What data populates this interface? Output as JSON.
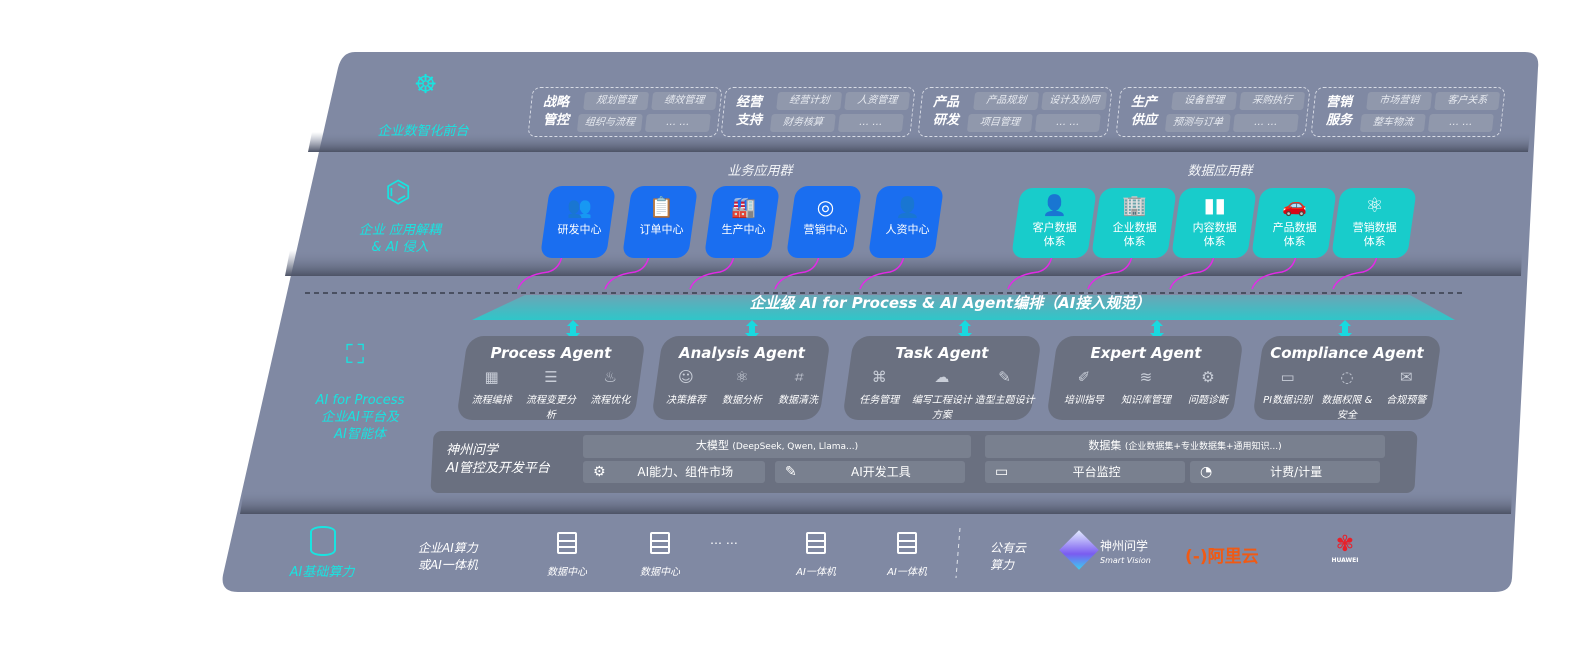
{
  "colors": {
    "slab": "#8089a3",
    "card_blue": "#1a6ef0",
    "card_teal": "#18cccb",
    "accent_cyan": "#19e3e0",
    "arrow_magenta": "#e22be6",
    "agent_card": "#6a7080"
  },
  "layer_front": {
    "label": "企业数智化前台",
    "icon": "brain-icon",
    "groups": [
      {
        "title": "战略\n管控",
        "items": [
          "规划管理",
          "绩效管理",
          "组织与流程",
          "… …"
        ]
      },
      {
        "title": "经营\n支持",
        "items": [
          "经营计划",
          "人资管理",
          "财务核算",
          "… …"
        ]
      },
      {
        "title": "产品\n研发",
        "items": [
          "产品规划",
          "设计及协同",
          "项目管理",
          "… …"
        ]
      },
      {
        "title": "生产\n供应",
        "items": [
          "设备管理",
          "采购执行",
          "预测与订单",
          "… …"
        ]
      },
      {
        "title": "营销\n服务",
        "items": [
          "市场营销",
          "客户关系",
          "整车物流",
          "… …"
        ]
      }
    ]
  },
  "layer_apps": {
    "label_line1": "企业 应用解耦",
    "label_line2": "& AI 侵入",
    "icon": "molecule-icon",
    "business_title": "业务应用群",
    "business": [
      {
        "label": "研发中心",
        "icon": "team-icon"
      },
      {
        "label": "订单中心",
        "icon": "clipboard-icon"
      },
      {
        "label": "生产中心",
        "icon": "factory-icon"
      },
      {
        "label": "营销中心",
        "icon": "target-icon"
      },
      {
        "label": "人资中心",
        "icon": "people-icon"
      }
    ],
    "data_title": "数据应用群",
    "data": [
      {
        "l1": "客户数据",
        "l2": "体系",
        "icon": "user-icon"
      },
      {
        "l1": "企业数据",
        "l2": "体系",
        "icon": "building-icon"
      },
      {
        "l1": "内容数据",
        "l2": "体系",
        "icon": "books-icon"
      },
      {
        "l1": "产品数据",
        "l2": "体系",
        "icon": "car-icon"
      },
      {
        "l1": "营销数据",
        "l2": "体系",
        "icon": "atom-icon"
      }
    ]
  },
  "orchestration": {
    "title": "企业级 AI for Process & AI Agent编排（AI接入规范）"
  },
  "layer_ai": {
    "label_en": "AI for Process",
    "label_l1": "企业AI平台及",
    "label_l2": "AI智能体",
    "icon": "face-scan-icon",
    "agents": [
      {
        "name": "Process Agent",
        "items": [
          {
            "label": "流程编排",
            "icon": "chart-icon"
          },
          {
            "label": "流程变更分析",
            "icon": "list-icon"
          },
          {
            "label": "流程优化",
            "icon": "optimize-icon"
          }
        ]
      },
      {
        "name": "Analysis Agent",
        "items": [
          {
            "label": "决策推荐",
            "icon": "head-icon"
          },
          {
            "label": "数据分析",
            "icon": "atom-icon"
          },
          {
            "label": "数据清洗",
            "icon": "clean-icon"
          }
        ]
      },
      {
        "name": "Task Agent",
        "items": [
          {
            "label": "任务管理",
            "icon": "network-icon"
          },
          {
            "label": "编写工程设计方案",
            "icon": "cloud-icon"
          },
          {
            "label": "造型主题设计",
            "icon": "design-icon"
          }
        ]
      },
      {
        "name": "Expert Agent",
        "items": [
          {
            "label": "培训指导",
            "icon": "training-icon"
          },
          {
            "label": "知识库管理",
            "icon": "layers-icon"
          },
          {
            "label": "问题诊断",
            "icon": "diagnose-icon"
          }
        ]
      },
      {
        "name": "Compliance Agent",
        "items": [
          {
            "label": "PI数据识别",
            "icon": "id-card-icon"
          },
          {
            "label": "数据权限 & 安全",
            "icon": "shield-icon"
          },
          {
            "label": "合规预警",
            "icon": "alert-icon"
          }
        ]
      }
    ],
    "platform": {
      "name_l1": "神州问学",
      "name_l2": "AI管控及开发平台",
      "model": "大模型",
      "model_note": "(DeepSeek, Qwen, Llama...)",
      "dataset": "数据集",
      "dataset_note": "(企业数据集+专业数据集+通用知识...)",
      "tools": [
        {
          "label": "AI能力、组件市场",
          "icon": "market-icon"
        },
        {
          "label": "AI开发工具",
          "icon": "dev-tool-icon"
        },
        {
          "label": "平台监控",
          "icon": "monitor-icon"
        },
        {
          "label": "计费/计量",
          "icon": "gauge-icon"
        }
      ]
    }
  },
  "layer_compute": {
    "label": "AI基础算力",
    "icon": "database-icon",
    "enterprise_l1": "企业AI算力",
    "enterprise_l2": "或AI一体机",
    "servers": [
      "数据中心",
      "数据中心",
      "AI一体机",
      "AI一体机"
    ],
    "ellipsis": "… …",
    "public_l1": "公有云",
    "public_l2": "算力",
    "logos": [
      {
        "name": "神州问学",
        "sub": "Smart Vision"
      },
      {
        "name": "阿里云",
        "mark": "(-)"
      },
      {
        "name": "HUAWEI"
      }
    ]
  }
}
